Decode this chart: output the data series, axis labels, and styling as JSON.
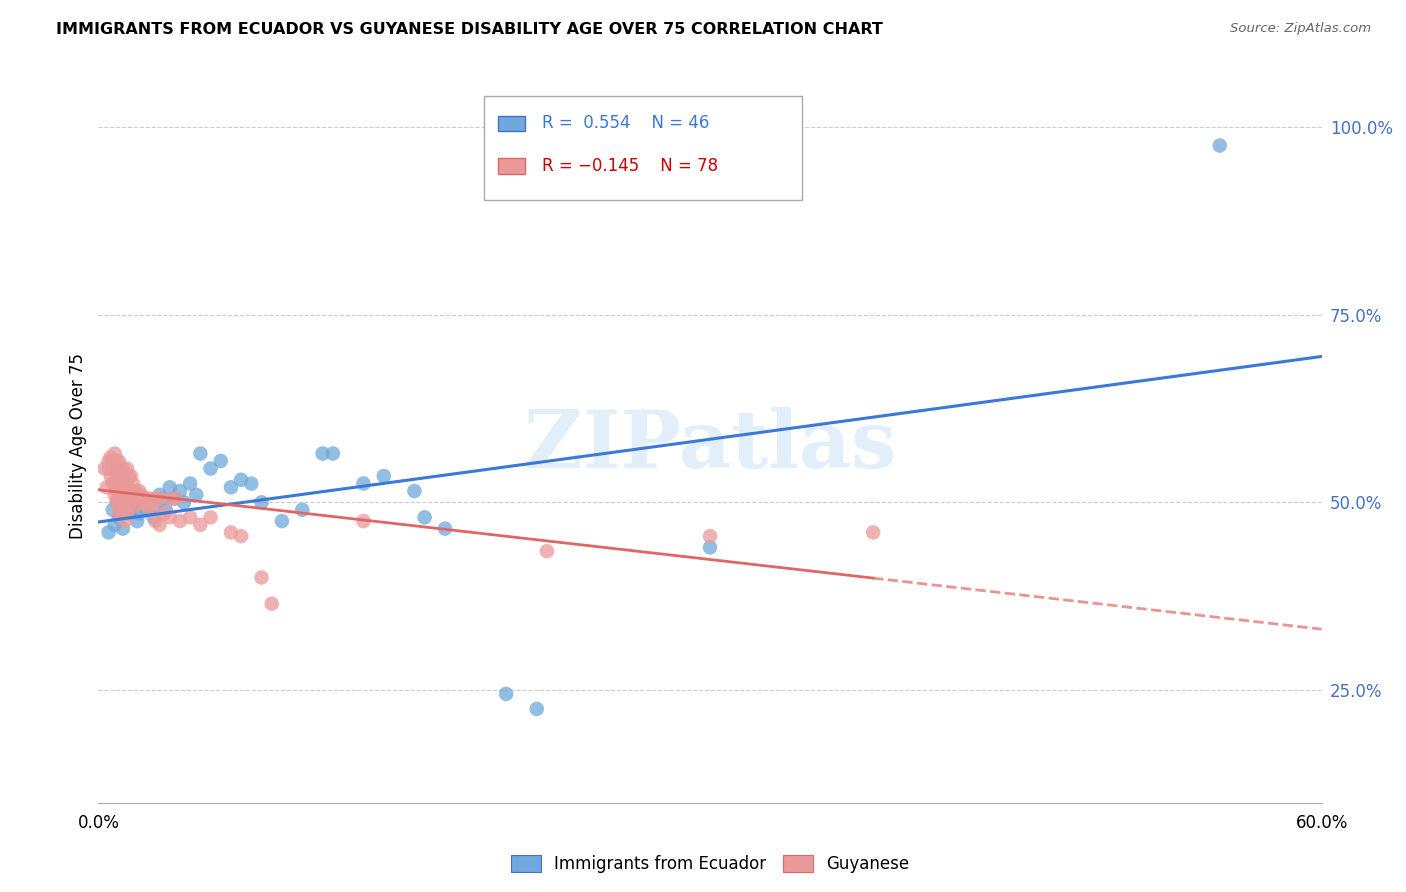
{
  "title": "IMMIGRANTS FROM ECUADOR VS GUYANESE DISABILITY AGE OVER 75 CORRELATION CHART",
  "source": "Source: ZipAtlas.com",
  "ylabel": "Disability Age Over 75",
  "ytick_labels": [
    "25.0%",
    "50.0%",
    "75.0%",
    "100.0%"
  ],
  "ytick_vals": [
    0.25,
    0.5,
    0.75,
    1.0
  ],
  "xlim": [
    0.0,
    0.6
  ],
  "ylim": [
    0.1,
    1.05
  ],
  "watermark": "ZIPatlas",
  "legend_label_ecuador": "Immigrants from Ecuador",
  "legend_label_guyanese": "Guyanese",
  "ecuador_color": "#6fa8dc",
  "guyanese_color": "#ea9999",
  "ecuador_line_color": "#3c78d8",
  "guyanese_line_color": "#e06666",
  "ecuador_r": 0.554,
  "ecuador_n": 46,
  "guyanese_r": -0.145,
  "guyanese_n": 78,
  "ecuador_scatter": [
    [
      0.005,
      0.46
    ],
    [
      0.007,
      0.49
    ],
    [
      0.008,
      0.47
    ],
    [
      0.009,
      0.5
    ],
    [
      0.01,
      0.48
    ],
    [
      0.012,
      0.465
    ],
    [
      0.013,
      0.5
    ],
    [
      0.015,
      0.485
    ],
    [
      0.016,
      0.49
    ],
    [
      0.018,
      0.495
    ],
    [
      0.019,
      0.475
    ],
    [
      0.02,
      0.485
    ],
    [
      0.022,
      0.505
    ],
    [
      0.023,
      0.49
    ],
    [
      0.025,
      0.5
    ],
    [
      0.027,
      0.48
    ],
    [
      0.028,
      0.495
    ],
    [
      0.03,
      0.51
    ],
    [
      0.032,
      0.505
    ],
    [
      0.033,
      0.49
    ],
    [
      0.035,
      0.52
    ],
    [
      0.037,
      0.505
    ],
    [
      0.04,
      0.515
    ],
    [
      0.042,
      0.5
    ],
    [
      0.045,
      0.525
    ],
    [
      0.048,
      0.51
    ],
    [
      0.05,
      0.565
    ],
    [
      0.055,
      0.545
    ],
    [
      0.06,
      0.555
    ],
    [
      0.065,
      0.52
    ],
    [
      0.07,
      0.53
    ],
    [
      0.075,
      0.525
    ],
    [
      0.08,
      0.5
    ],
    [
      0.09,
      0.475
    ],
    [
      0.1,
      0.49
    ],
    [
      0.11,
      0.565
    ],
    [
      0.115,
      0.565
    ],
    [
      0.13,
      0.525
    ],
    [
      0.14,
      0.535
    ],
    [
      0.155,
      0.515
    ],
    [
      0.16,
      0.48
    ],
    [
      0.17,
      0.465
    ],
    [
      0.2,
      0.245
    ],
    [
      0.215,
      0.225
    ],
    [
      0.3,
      0.44
    ],
    [
      0.55,
      0.975
    ]
  ],
  "guyanese_scatter": [
    [
      0.003,
      0.545
    ],
    [
      0.004,
      0.52
    ],
    [
      0.005,
      0.555
    ],
    [
      0.005,
      0.545
    ],
    [
      0.006,
      0.56
    ],
    [
      0.006,
      0.535
    ],
    [
      0.007,
      0.555
    ],
    [
      0.007,
      0.545
    ],
    [
      0.007,
      0.525
    ],
    [
      0.008,
      0.565
    ],
    [
      0.008,
      0.545
    ],
    [
      0.008,
      0.525
    ],
    [
      0.008,
      0.51
    ],
    [
      0.009,
      0.555
    ],
    [
      0.009,
      0.535
    ],
    [
      0.009,
      0.515
    ],
    [
      0.009,
      0.5
    ],
    [
      0.01,
      0.555
    ],
    [
      0.01,
      0.545
    ],
    [
      0.01,
      0.535
    ],
    [
      0.01,
      0.525
    ],
    [
      0.01,
      0.515
    ],
    [
      0.01,
      0.505
    ],
    [
      0.01,
      0.495
    ],
    [
      0.01,
      0.485
    ],
    [
      0.011,
      0.545
    ],
    [
      0.011,
      0.525
    ],
    [
      0.011,
      0.505
    ],
    [
      0.012,
      0.545
    ],
    [
      0.012,
      0.525
    ],
    [
      0.012,
      0.505
    ],
    [
      0.012,
      0.485
    ],
    [
      0.013,
      0.535
    ],
    [
      0.013,
      0.515
    ],
    [
      0.013,
      0.495
    ],
    [
      0.013,
      0.475
    ],
    [
      0.014,
      0.545
    ],
    [
      0.014,
      0.525
    ],
    [
      0.014,
      0.505
    ],
    [
      0.014,
      0.485
    ],
    [
      0.015,
      0.535
    ],
    [
      0.015,
      0.515
    ],
    [
      0.015,
      0.495
    ],
    [
      0.016,
      0.535
    ],
    [
      0.016,
      0.515
    ],
    [
      0.017,
      0.525
    ],
    [
      0.017,
      0.505
    ],
    [
      0.018,
      0.515
    ],
    [
      0.018,
      0.495
    ],
    [
      0.019,
      0.51
    ],
    [
      0.02,
      0.515
    ],
    [
      0.02,
      0.505
    ],
    [
      0.021,
      0.51
    ],
    [
      0.022,
      0.5
    ],
    [
      0.023,
      0.505
    ],
    [
      0.024,
      0.495
    ],
    [
      0.025,
      0.505
    ],
    [
      0.026,
      0.495
    ],
    [
      0.028,
      0.505
    ],
    [
      0.028,
      0.475
    ],
    [
      0.03,
      0.505
    ],
    [
      0.03,
      0.47
    ],
    [
      0.032,
      0.485
    ],
    [
      0.035,
      0.505
    ],
    [
      0.035,
      0.48
    ],
    [
      0.038,
      0.505
    ],
    [
      0.04,
      0.475
    ],
    [
      0.045,
      0.48
    ],
    [
      0.05,
      0.47
    ],
    [
      0.055,
      0.48
    ],
    [
      0.065,
      0.46
    ],
    [
      0.07,
      0.455
    ],
    [
      0.08,
      0.4
    ],
    [
      0.085,
      0.365
    ],
    [
      0.13,
      0.475
    ],
    [
      0.22,
      0.435
    ],
    [
      0.3,
      0.455
    ],
    [
      0.38,
      0.46
    ]
  ]
}
